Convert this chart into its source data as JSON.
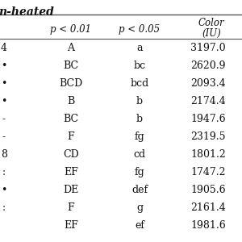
{
  "title": "n-heated",
  "header_p01": "p < 0.01",
  "header_p05": "p < 0.05",
  "header_color1": "Color",
  "header_color2": "(IU)",
  "col0": [
    "4",
    "•",
    "•",
    "•",
    "-",
    "-",
    "8",
    ":",
    "•",
    ":",
    ""
  ],
  "col1": [
    "A",
    "BC",
    "BCD",
    "B",
    "BC",
    "F",
    "CD",
    "EF",
    "DE",
    "F",
    "EF"
  ],
  "col2": [
    "a",
    "bc",
    "bcd",
    "b",
    "b",
    "fg",
    "cd",
    "fg",
    "def",
    "g",
    "ef"
  ],
  "col3": [
    "3197.0",
    "2620.9",
    "2093.4",
    "2174.4",
    "1947.6",
    "2319.5",
    "1801.2",
    "1747.2",
    "1905.6",
    "2161.4",
    "1981.6"
  ],
  "bg_color": "#ffffff",
  "text_color": "#111111",
  "title_fontsize": 10,
  "header_fontsize": 8.5,
  "cell_fontsize": 9
}
